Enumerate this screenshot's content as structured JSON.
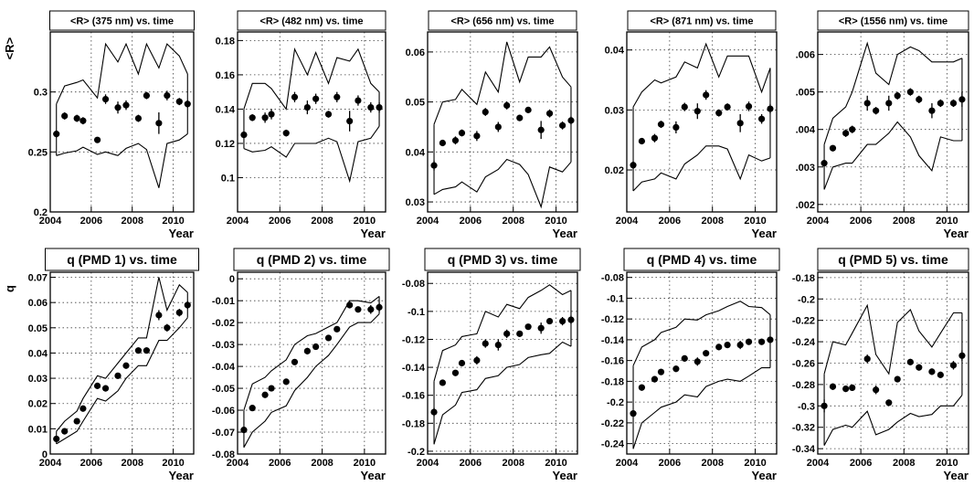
{
  "chart_data": [
    {
      "type": "scatter",
      "title": "<R> (375 nm) vs. time",
      "xlabel": "Year",
      "ylabel": "<R>",
      "xlim": [
        2004,
        2011
      ],
      "ylim": [
        0.2,
        0.35
      ],
      "xticks": [
        "2004",
        "2006",
        "2008",
        "2010"
      ],
      "yticks": [
        "0.2",
        "0.25",
        "0.3"
      ],
      "grid": true,
      "x": [
        2004.3,
        2004.7,
        2005.3,
        2005.6,
        2006.3,
        2006.7,
        2007.3,
        2007.7,
        2008.3,
        2008.7,
        2009.3,
        2009.7,
        2010.3,
        2010.7
      ],
      "y": [
        0.265,
        0.28,
        0.278,
        0.276,
        0.26,
        0.294,
        0.287,
        0.289,
        0.278,
        0.297,
        0.274,
        0.297,
        0.292,
        0.29
      ],
      "yerr": [
        0.003,
        0.003,
        0.003,
        0.003,
        0.002,
        0.004,
        0.005,
        0.004,
        0.003,
        0.003,
        0.009,
        0.004,
        0.003,
        0.003
      ],
      "band_upper": [
        0.29,
        0.305,
        0.308,
        0.31,
        0.295,
        0.34,
        0.325,
        0.34,
        0.315,
        0.34,
        0.32,
        0.34,
        0.33,
        0.315
      ],
      "band_lower": [
        0.247,
        0.249,
        0.251,
        0.254,
        0.248,
        0.25,
        0.247,
        0.253,
        0.257,
        0.252,
        0.22,
        0.257,
        0.26,
        0.265
      ]
    },
    {
      "type": "scatter",
      "title": "<R> (482 nm) vs. time",
      "xlabel": "Year",
      "ylabel": "",
      "xlim": [
        2004,
        2011
      ],
      "ylim": [
        0.08,
        0.185
      ],
      "xticks": [
        "2004",
        "2006",
        "2008",
        "2010"
      ],
      "yticks": [
        "0.1",
        "0.12",
        "0.14",
        "0.16",
        "0.18"
      ],
      "grid": true,
      "x": [
        2004.3,
        2004.7,
        2005.3,
        2005.6,
        2006.3,
        2006.7,
        2007.3,
        2007.7,
        2008.3,
        2008.7,
        2009.3,
        2009.7,
        2010.3,
        2010.7
      ],
      "y": [
        0.125,
        0.135,
        0.135,
        0.137,
        0.126,
        0.147,
        0.141,
        0.146,
        0.137,
        0.147,
        0.133,
        0.145,
        0.141,
        0.141
      ],
      "yerr": [
        0.002,
        0.002,
        0.003,
        0.003,
        0.002,
        0.003,
        0.004,
        0.003,
        0.002,
        0.003,
        0.006,
        0.003,
        0.003,
        0.003
      ],
      "band_upper": [
        0.14,
        0.155,
        0.155,
        0.152,
        0.14,
        0.175,
        0.16,
        0.173,
        0.155,
        0.17,
        0.168,
        0.175,
        0.155,
        0.15
      ],
      "band_lower": [
        0.117,
        0.115,
        0.116,
        0.118,
        0.112,
        0.12,
        0.12,
        0.12,
        0.123,
        0.121,
        0.098,
        0.121,
        0.123,
        0.13
      ]
    },
    {
      "type": "scatter",
      "title": "<R> (656 nm) vs. time",
      "xlabel": "Year",
      "ylabel": "",
      "xlim": [
        2004,
        2011
      ],
      "ylim": [
        0.028,
        0.064
      ],
      "xticks": [
        "2004",
        "2006",
        "2008",
        "2010"
      ],
      "yticks": [
        "0.03",
        "0.04",
        "0.05",
        "0.06"
      ],
      "grid": true,
      "x": [
        2004.3,
        2004.7,
        2005.3,
        2005.6,
        2006.3,
        2006.7,
        2007.3,
        2007.7,
        2008.3,
        2008.7,
        2009.3,
        2009.7,
        2010.3,
        2010.7
      ],
      "y": [
        0.0373,
        0.0418,
        0.0423,
        0.0438,
        0.0432,
        0.048,
        0.045,
        0.0493,
        0.0468,
        0.0484,
        0.0444,
        0.0477,
        0.0453,
        0.0463
      ],
      "yerr": [
        0.001,
        0.0006,
        0.0008,
        0.0007,
        0.001,
        0.0008,
        0.001,
        0.0008,
        0.0006,
        0.0006,
        0.0018,
        0.0008,
        0.0008,
        0.0008
      ],
      "band_upper": [
        0.0455,
        0.05,
        0.0505,
        0.0525,
        0.0495,
        0.056,
        0.052,
        0.062,
        0.054,
        0.059,
        0.059,
        0.061,
        0.055,
        0.053
      ],
      "band_lower": [
        0.0315,
        0.0325,
        0.033,
        0.034,
        0.032,
        0.035,
        0.0365,
        0.0385,
        0.0375,
        0.0355,
        0.029,
        0.037,
        0.036,
        0.038
      ]
    },
    {
      "type": "scatter",
      "title": "<R> (871 nm) vs. time",
      "xlabel": "Year",
      "ylabel": "",
      "xlim": [
        2004,
        2011
      ],
      "ylim": [
        0.013,
        0.043
      ],
      "xticks": [
        "2004",
        "2006",
        "2008",
        "2010"
      ],
      "yticks": [
        "0.02",
        "0.03",
        "0.04"
      ],
      "grid": true,
      "x": [
        2004.3,
        2004.7,
        2005.3,
        2005.6,
        2006.3,
        2006.7,
        2007.3,
        2007.7,
        2008.3,
        2008.7,
        2009.3,
        2009.7,
        2010.3,
        2010.7
      ],
      "y": [
        0.0208,
        0.0248,
        0.0253,
        0.0276,
        0.0271,
        0.0305,
        0.0298,
        0.0325,
        0.0295,
        0.0305,
        0.0278,
        0.0306,
        0.0285,
        0.0302
      ],
      "yerr": [
        0.0006,
        0.0005,
        0.0007,
        0.0006,
        0.001,
        0.0007,
        0.0013,
        0.0008,
        0.0006,
        0.0006,
        0.0015,
        0.0008,
        0.0008,
        0.0008
      ],
      "band_upper": [
        0.0305,
        0.033,
        0.035,
        0.0345,
        0.0355,
        0.038,
        0.037,
        0.041,
        0.0355,
        0.039,
        0.039,
        0.039,
        0.033,
        0.037
      ],
      "band_lower": [
        0.0165,
        0.018,
        0.0185,
        0.0195,
        0.0185,
        0.021,
        0.0225,
        0.024,
        0.024,
        0.0235,
        0.0185,
        0.0225,
        0.0215,
        0.022
      ]
    },
    {
      "type": "scatter",
      "title": "<R> (1556 nm) vs. time",
      "xlabel": "Year",
      "ylabel": "",
      "xlim": [
        2004,
        2011
      ],
      "ylim": [
        0.0018,
        0.0066
      ],
      "xticks": [
        "2004",
        "2006",
        "2008",
        "2010"
      ],
      "yticks": [
        ".002",
        ".003",
        ".004",
        ".005",
        ".006"
      ],
      "grid": true,
      "x": [
        2004.3,
        2004.7,
        2005.3,
        2005.6,
        2006.3,
        2006.7,
        2007.3,
        2007.7,
        2008.3,
        2008.7,
        2009.3,
        2009.7,
        2010.3,
        2010.7
      ],
      "y": [
        0.0031,
        0.0035,
        0.0039,
        0.004,
        0.0047,
        0.0045,
        0.0047,
        0.0049,
        0.005,
        0.0048,
        0.0045,
        0.0047,
        0.0047,
        0.0048
      ],
      "yerr": [
        8e-05,
        8e-05,
        0.0001,
        0.0001,
        0.0002,
        0.0001,
        0.0002,
        0.0001,
        0.0001,
        0.0001,
        0.0002,
        0.0001,
        0.0001,
        0.0002
      ],
      "band_upper": [
        0.0036,
        0.0043,
        0.0046,
        0.005,
        0.0063,
        0.0055,
        0.0052,
        0.006,
        0.0062,
        0.0061,
        0.0058,
        0.0058,
        0.0058,
        0.0059
      ],
      "band_lower": [
        0.0024,
        0.003,
        0.0031,
        0.0031,
        0.0036,
        0.0036,
        0.0039,
        0.0042,
        0.0038,
        0.0033,
        0.0029,
        0.0038,
        0.0037,
        0.0037
      ]
    },
    {
      "type": "scatter",
      "title": "q (PMD 1) vs. time",
      "xlabel": "Year",
      "ylabel": "q",
      "xlim": [
        2004,
        2011
      ],
      "ylim": [
        0,
        0.072
      ],
      "xticks": [
        "2004",
        "2006",
        "2008",
        "2010"
      ],
      "yticks": [
        "0",
        "0.01",
        "0.02",
        "0.03",
        "0.04",
        "0.05",
        "0.06",
        "0.07"
      ],
      "grid": true,
      "x": [
        2004.3,
        2004.7,
        2005.3,
        2005.6,
        2006.3,
        2006.7,
        2007.3,
        2007.7,
        2008.3,
        2008.7,
        2009.3,
        2009.7,
        2010.3,
        2010.7
      ],
      "y": [
        0.006,
        0.009,
        0.013,
        0.018,
        0.027,
        0.026,
        0.031,
        0.035,
        0.041,
        0.041,
        0.055,
        0.05,
        0.056,
        0.059
      ],
      "yerr": [
        0.0008,
        0.0008,
        0.001,
        0.001,
        0.0012,
        0.0012,
        0.0012,
        0.0012,
        0.0012,
        0.0012,
        0.002,
        0.0015,
        0.0015,
        0.0015
      ],
      "band_upper": [
        0.009,
        0.013,
        0.017,
        0.022,
        0.031,
        0.03,
        0.036,
        0.04,
        0.046,
        0.046,
        0.07,
        0.057,
        0.067,
        0.064
      ],
      "band_lower": [
        0.004,
        0.006,
        0.009,
        0.013,
        0.022,
        0.021,
        0.025,
        0.03,
        0.035,
        0.035,
        0.045,
        0.045,
        0.05,
        0.054
      ]
    },
    {
      "type": "scatter",
      "title": "q (PMD 2) vs. time",
      "xlabel": "Year",
      "ylabel": "",
      "xlim": [
        2004,
        2011
      ],
      "ylim": [
        -0.08,
        0.003
      ],
      "xticks": [
        "2004",
        "2006",
        "2008",
        "2010"
      ],
      "yticks": [
        "-0.08",
        "-0.07",
        "-0.06",
        "-0.05",
        "-0.04",
        "-0.03",
        "-0.02",
        "-0.01",
        "0"
      ],
      "grid": true,
      "x": [
        2004.3,
        2004.7,
        2005.3,
        2005.6,
        2006.3,
        2006.7,
        2007.3,
        2007.7,
        2008.3,
        2008.7,
        2009.3,
        2009.7,
        2010.3,
        2010.7
      ],
      "y": [
        -0.069,
        -0.059,
        -0.053,
        -0.05,
        -0.047,
        -0.038,
        -0.033,
        -0.031,
        -0.027,
        -0.023,
        -0.012,
        -0.014,
        -0.014,
        -0.013
      ],
      "yerr": [
        0.0015,
        0.0012,
        0.0012,
        0.0012,
        0.0012,
        0.0012,
        0.0015,
        0.0012,
        0.0012,
        0.0012,
        0.0015,
        0.0012,
        0.002,
        0.002
      ],
      "band_upper": [
        -0.06,
        -0.048,
        -0.045,
        -0.042,
        -0.037,
        -0.03,
        -0.026,
        -0.025,
        -0.022,
        -0.02,
        -0.01,
        -0.01,
        -0.011,
        -0.008
      ],
      "band_lower": [
        -0.077,
        -0.07,
        -0.065,
        -0.061,
        -0.058,
        -0.051,
        -0.045,
        -0.04,
        -0.035,
        -0.03,
        -0.022,
        -0.02,
        -0.02,
        -0.016
      ]
    },
    {
      "type": "scatter",
      "title": "q (PMD 3) vs. time",
      "xlabel": "Year",
      "ylabel": "",
      "xlim": [
        2004,
        2011
      ],
      "ylim": [
        -0.202,
        -0.072
      ],
      "xticks": [
        "2004",
        "2006",
        "2008",
        "2010"
      ],
      "yticks": [
        "-0.2",
        "-0.18",
        "-0.16",
        "-0.14",
        "-0.12",
        "-0.1",
        "-0.08"
      ],
      "grid": true,
      "x": [
        2004.3,
        2004.7,
        2005.3,
        2005.6,
        2006.3,
        2006.7,
        2007.3,
        2007.7,
        2008.3,
        2008.7,
        2009.3,
        2009.7,
        2010.3,
        2010.7
      ],
      "y": [
        -0.172,
        -0.151,
        -0.144,
        -0.137,
        -0.135,
        -0.123,
        -0.124,
        -0.116,
        -0.116,
        -0.111,
        -0.112,
        -0.107,
        -0.107,
        -0.106
      ],
      "yerr": [
        0.003,
        0.002,
        0.002,
        0.002,
        0.003,
        0.003,
        0.004,
        0.003,
        0.002,
        0.002,
        0.004,
        0.002,
        0.003,
        0.003
      ],
      "band_upper": [
        -0.15,
        -0.128,
        -0.124,
        -0.118,
        -0.116,
        -0.1,
        -0.104,
        -0.095,
        -0.098,
        -0.09,
        -0.085,
        -0.081,
        -0.088,
        -0.085
      ],
      "band_lower": [
        -0.195,
        -0.174,
        -0.167,
        -0.158,
        -0.156,
        -0.148,
        -0.146,
        -0.14,
        -0.138,
        -0.133,
        -0.131,
        -0.13,
        -0.122,
        -0.125
      ]
    },
    {
      "type": "scatter",
      "title": "q (PMD 4) vs. time",
      "xlabel": "Year",
      "ylabel": "",
      "xlim": [
        2004,
        2011
      ],
      "ylim": [
        -0.25,
        -0.075
      ],
      "xticks": [
        "2004",
        "2006",
        "2008",
        "2010"
      ],
      "yticks": [
        "-0.24",
        "-0.22",
        "-0.2",
        "-0.18",
        "-0.16",
        "-0.14",
        "-0.12",
        "-0.1",
        "-0.08"
      ],
      "grid": true,
      "x": [
        2004.3,
        2004.7,
        2005.3,
        2005.6,
        2006.3,
        2006.7,
        2007.3,
        2007.7,
        2008.3,
        2008.7,
        2009.3,
        2009.7,
        2010.3,
        2010.7
      ],
      "y": [
        -0.211,
        -0.186,
        -0.178,
        -0.171,
        -0.168,
        -0.158,
        -0.161,
        -0.153,
        -0.147,
        -0.145,
        -0.145,
        -0.142,
        -0.142,
        -0.14
      ],
      "yerr": [
        0.003,
        0.003,
        0.003,
        0.003,
        0.003,
        0.003,
        0.004,
        0.003,
        0.003,
        0.003,
        0.004,
        0.003,
        0.003,
        0.003
      ],
      "band_upper": [
        -0.165,
        -0.147,
        -0.14,
        -0.133,
        -0.128,
        -0.12,
        -0.121,
        -0.116,
        -0.112,
        -0.108,
        -0.103,
        -0.108,
        -0.109,
        -0.116
      ],
      "band_lower": [
        -0.245,
        -0.22,
        -0.21,
        -0.205,
        -0.2,
        -0.193,
        -0.195,
        -0.185,
        -0.18,
        -0.178,
        -0.18,
        -0.175,
        -0.167,
        -0.167
      ]
    },
    {
      "type": "scatter",
      "title": "q (PMD 5) vs. time",
      "xlabel": "Year",
      "ylabel": "",
      "xlim": [
        2004,
        2011
      ],
      "ylim": [
        -0.345,
        -0.175
      ],
      "xticks": [
        "2004",
        "2006",
        "2008",
        "2010"
      ],
      "yticks": [
        "-0.34",
        "-0.32",
        "-0.3",
        "-0.28",
        "-0.26",
        "-0.24",
        "-0.22",
        "-0.2",
        "-0.18"
      ],
      "grid": true,
      "x": [
        2004.3,
        2004.7,
        2005.3,
        2005.6,
        2006.3,
        2006.7,
        2007.3,
        2007.7,
        2008.3,
        2008.7,
        2009.3,
        2009.7,
        2010.3,
        2010.7
      ],
      "y": [
        -0.3,
        -0.282,
        -0.284,
        -0.283,
        -0.256,
        -0.285,
        -0.297,
        -0.275,
        -0.259,
        -0.264,
        -0.268,
        -0.271,
        -0.262,
        -0.253
      ],
      "yerr": [
        0.006,
        0.003,
        0.003,
        0.003,
        0.004,
        0.004,
        0.003,
        0.003,
        0.003,
        0.003,
        0.003,
        0.003,
        0.004,
        0.005
      ],
      "band_upper": [
        -0.27,
        -0.24,
        -0.243,
        -0.232,
        -0.206,
        -0.252,
        -0.27,
        -0.222,
        -0.21,
        -0.23,
        -0.245,
        -0.232,
        -0.213,
        -0.213
      ],
      "band_lower": [
        -0.337,
        -0.322,
        -0.318,
        -0.32,
        -0.305,
        -0.327,
        -0.322,
        -0.315,
        -0.307,
        -0.31,
        -0.308,
        -0.3,
        -0.3,
        -0.29
      ]
    }
  ]
}
